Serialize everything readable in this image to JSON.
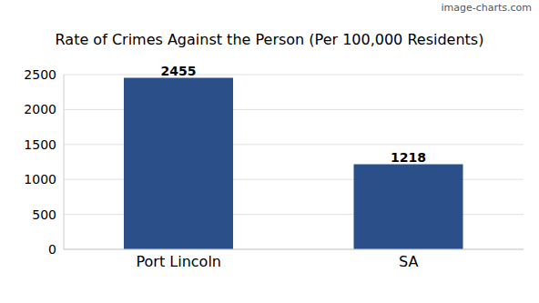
{
  "chart_data": {
    "type": "bar",
    "title": "Rate of Crimes Against the Person (Per 100,000 Residents)",
    "categories": [
      "Port Lincoln",
      "SA"
    ],
    "values": [
      2455,
      1218
    ],
    "color": "#2b5089",
    "ylim": [
      0,
      2500
    ],
    "yticks": [
      0,
      500,
      1000,
      1500,
      2000,
      2500
    ],
    "grid": true,
    "data_labels": true,
    "annotations": [
      "image-charts.com"
    ]
  }
}
